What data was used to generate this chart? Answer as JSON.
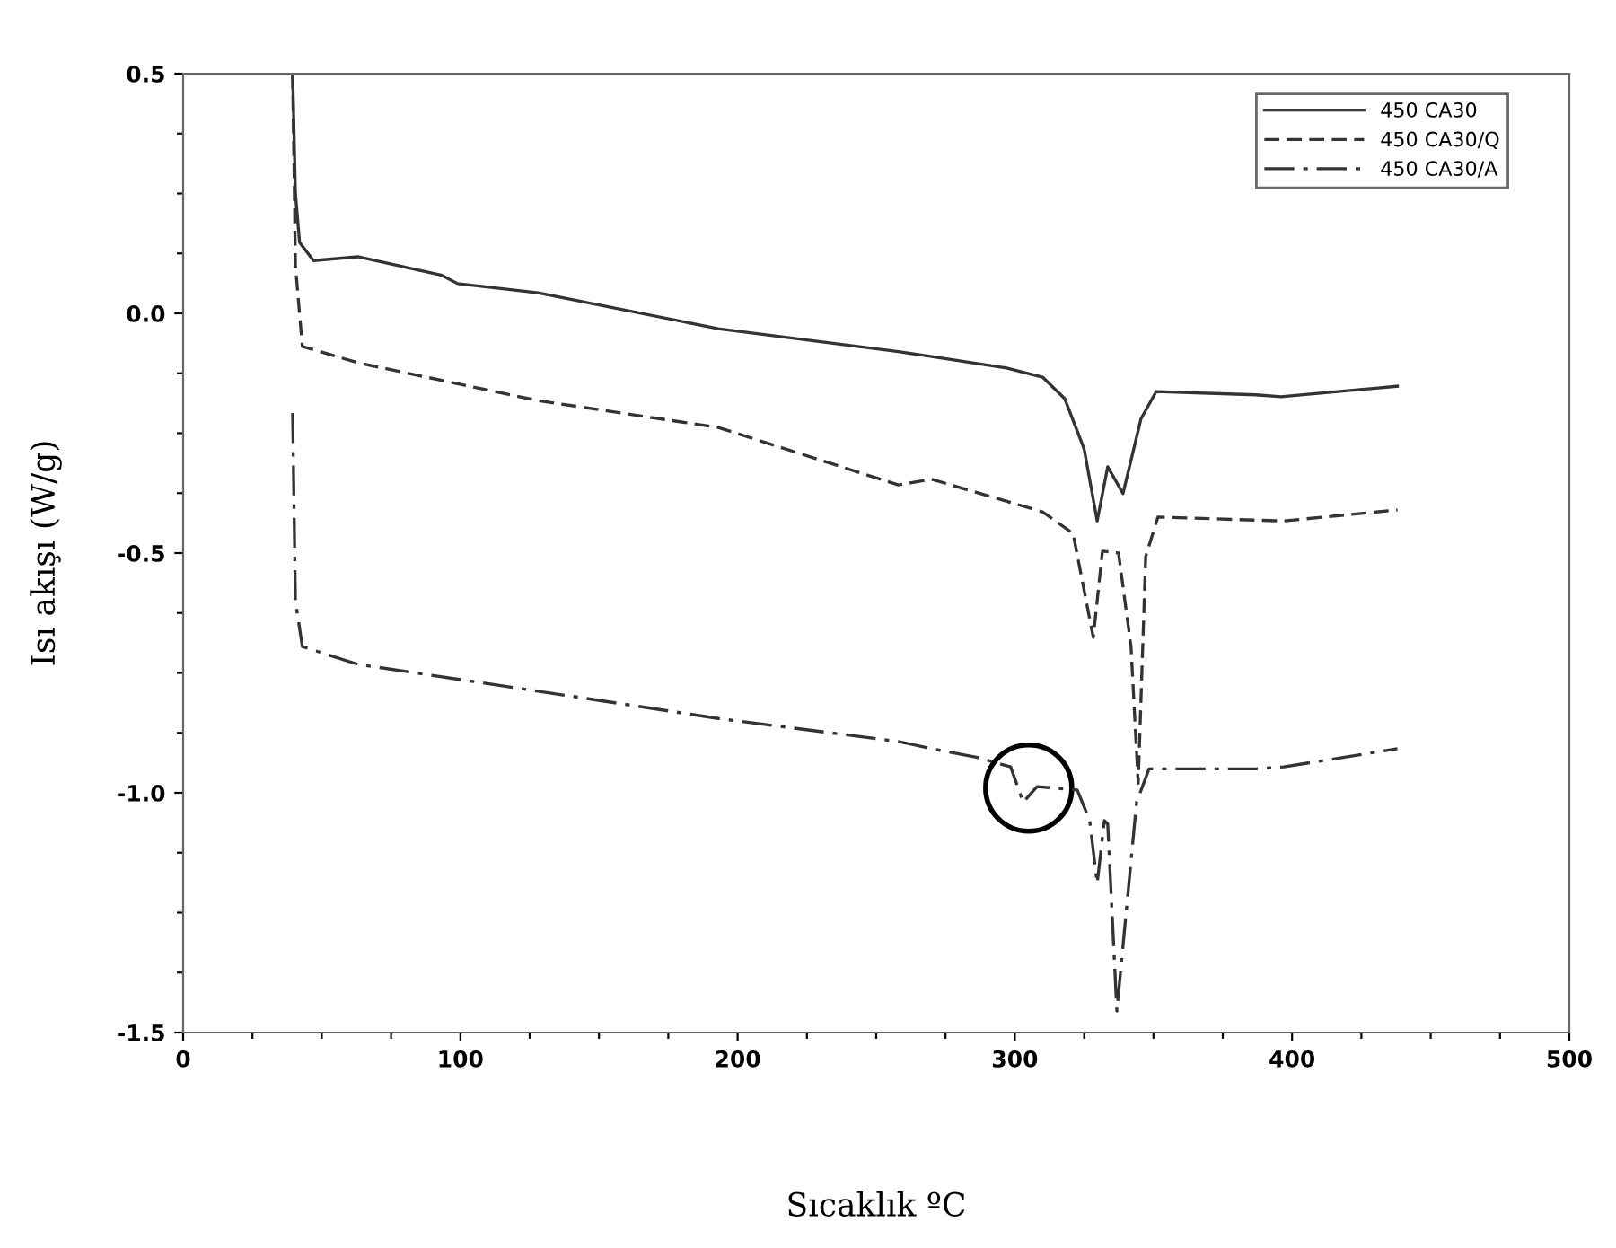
{
  "chart_data": {
    "type": "line",
    "xlabel": "Sıcaklık ºC",
    "ylabel": "Isı akışı (W/g)",
    "xlim": [
      0,
      500
    ],
    "ylim": [
      -1.5,
      0.5
    ],
    "xticks": [
      0,
      {
        "value": 25,
        "label": null
      },
      {
        "value": 50,
        "label": null
      },
      {
        "value": 75,
        "label": null
      },
      100,
      {
        "value": 125,
        "label": null
      },
      {
        "value": 150,
        "label": null
      },
      {
        "value": 175,
        "label": null
      },
      200,
      {
        "value": 225,
        "label": null
      },
      {
        "value": 250,
        "label": null
      },
      {
        "value": 275,
        "label": null
      },
      300,
      {
        "value": 325,
        "label": null
      },
      {
        "value": 350,
        "label": null
      },
      {
        "value": 375,
        "label": null
      },
      400,
      {
        "value": 425,
        "label": null
      },
      {
        "value": 450,
        "label": null
      },
      {
        "value": 475,
        "label": null
      },
      500
    ],
    "yticks": [
      {
        "value": -1.5,
        "label": "-1.5"
      },
      {
        "value": -1.375,
        "label": null
      },
      {
        "value": -1.25,
        "label": null
      },
      {
        "value": -1.125,
        "label": null
      },
      {
        "value": -1.0,
        "label": "-1.0"
      },
      {
        "value": -0.875,
        "label": null
      },
      {
        "value": -0.75,
        "label": null
      },
      {
        "value": -0.625,
        "label": null
      },
      {
        "value": -0.5,
        "label": "-0.5"
      },
      {
        "value": -0.375,
        "label": null
      },
      {
        "value": -0.25,
        "label": null
      },
      {
        "value": -0.125,
        "label": null
      },
      {
        "value": 0.0,
        "label": "0.0"
      },
      {
        "value": 0.125,
        "label": null
      },
      {
        "value": 0.25,
        "label": null
      },
      {
        "value": 0.375,
        "label": null
      },
      {
        "value": 0.5,
        "label": "0.5"
      }
    ],
    "grid": false,
    "legend": "top right",
    "marker": "none",
    "series": [
      {
        "name": "450 CA30",
        "color": "#333333",
        "line_style": "solid",
        "x": [
          39.5,
          40.5,
          42,
          47,
          63,
          93,
          99,
          128,
          193,
          258,
          270,
          297,
          310,
          318,
          325,
          329.7,
          333.5,
          339,
          345.5,
          351,
          387,
          396,
          438
        ],
        "values": [
          0.5,
          0.25,
          0.148,
          0.11,
          0.118,
          0.08,
          0.062,
          0.043,
          -0.032,
          -0.08,
          -0.09,
          -0.114,
          -0.133,
          -0.178,
          -0.283,
          -0.433,
          -0.32,
          -0.376,
          -0.22,
          -0.163,
          -0.17,
          -0.174,
          -0.152
        ]
      },
      {
        "name": "450 CA30/Q",
        "color": "#333333",
        "line_style": "dashed",
        "x": [
          39.5,
          40.5,
          43,
          63,
          128,
          193,
          258,
          270,
          310,
          321,
          328.3,
          331.6,
          337.4,
          341.9,
          344.5,
          347.2,
          351.6,
          397,
          438
        ],
        "values": [
          0.5,
          0.1,
          -0.069,
          -0.103,
          -0.182,
          -0.238,
          -0.358,
          -0.346,
          -0.414,
          -0.459,
          -0.676,
          -0.496,
          -0.5,
          -0.695,
          -0.98,
          -0.507,
          -0.425,
          -0.433,
          -0.41
        ]
      },
      {
        "name": "450 CA30/A",
        "color": "#333333",
        "line_style": "dashdot",
        "x": [
          39.5,
          40.5,
          43,
          63,
          128,
          193,
          258,
          270,
          287,
          298.5,
          303,
          308,
          322.5,
          327,
          329.7,
          332.3,
          333.5,
          336.8,
          343.9,
          348.4,
          387,
          397,
          438
        ],
        "values": [
          -0.208,
          -0.6,
          -0.695,
          -0.732,
          -0.788,
          -0.845,
          -0.893,
          -0.908,
          -0.927,
          -0.946,
          -1.02,
          -0.987,
          -0.994,
          -1.058,
          -1.189,
          -1.058,
          -1.065,
          -1.455,
          -1.02,
          -0.95,
          -0.95,
          -0.946,
          -0.908
        ]
      }
    ]
  }
}
